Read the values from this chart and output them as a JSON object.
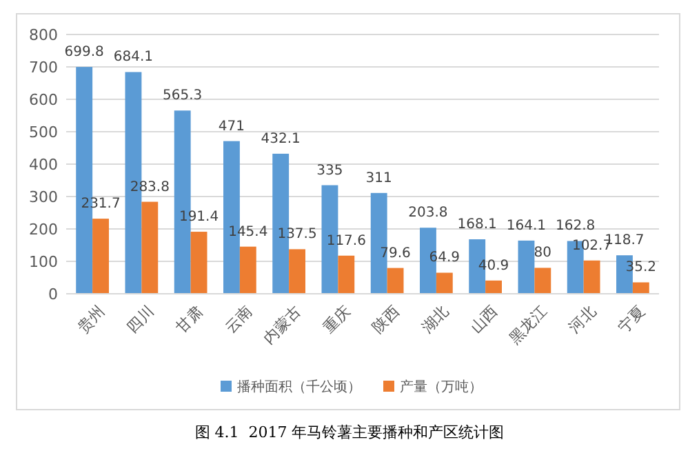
{
  "chart_data": {
    "type": "bar",
    "categories": [
      "贵州",
      "四川",
      "甘肃",
      "云南",
      "内蒙古",
      "重庆",
      "陕西",
      "湖北",
      "山西",
      "黑龙江",
      "河北",
      "宁夏"
    ],
    "series": [
      {
        "name": "播种面积（千公顷）",
        "color": "#5b9bd5",
        "values": [
          699.8,
          684.1,
          565.3,
          471,
          432.1,
          335,
          311,
          203.8,
          168.1,
          164.1,
          162.8,
          118.7
        ]
      },
      {
        "name": "产量（万吨）",
        "color": "#ed7d31",
        "values": [
          231.7,
          283.8,
          191.4,
          145.4,
          137.5,
          117.6,
          79.6,
          64.9,
          40.9,
          80,
          102.7,
          35.2
        ]
      }
    ],
    "ylim": [
      0,
      800
    ],
    "yticks": [
      0,
      100,
      200,
      300,
      400,
      500,
      600,
      700,
      800
    ],
    "grid": "y",
    "legend": "bottom",
    "data_labels": true,
    "annotations": [
      "图 4.1  2017 年马铃薯主要播种和产区统计图"
    ]
  }
}
